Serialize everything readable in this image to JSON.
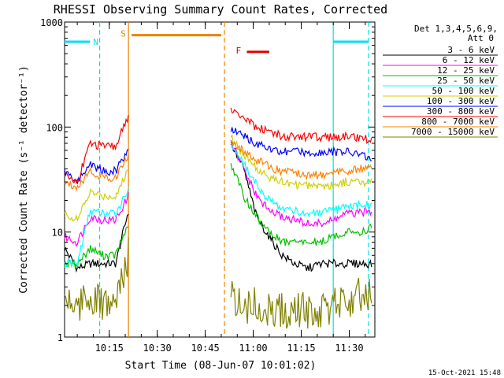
{
  "footer_timestamp": "15-Oct-2021 15:48",
  "chart_data": {
    "type": "line",
    "title": "RHESSI Observing Summary Count Rates, Corrected",
    "xlabel": "Start Time (08-Jun-07 10:01:02)",
    "ylabel": "Corrected Count Rate (s⁻¹ detector⁻¹)",
    "yscale": "log",
    "ylim": [
      1,
      1000
    ],
    "xlim": [
      "10:01:02",
      "11:38:00"
    ],
    "y_ticks": [
      "1",
      "10",
      "100",
      "1000"
    ],
    "x_ticks": [
      "10:15",
      "10:30",
      "10:45",
      "11:00",
      "11:15",
      "11:30"
    ],
    "legend_header": [
      "Det 1,3,4,5,6,9,",
      "Att 0"
    ],
    "legend_position": "right",
    "state_bars": [
      {
        "label": "N",
        "color": "#00e0f0",
        "segments": [
          [
            "10:01",
            "10:09"
          ],
          [
            "11:25",
            "11:36"
          ]
        ],
        "level": 650
      },
      {
        "label": "S",
        "color": "#f08000",
        "segments": [
          [
            "10:22",
            "10:50"
          ]
        ],
        "level": 750
      },
      {
        "label": "F",
        "color": "#e00000",
        "segments": [
          [
            "10:58",
            "11:05"
          ]
        ],
        "level": 520
      }
    ],
    "markers": [
      {
        "time": "10:12",
        "color": "#00e0f0",
        "style": "dashed"
      },
      {
        "time": "10:21",
        "color": "#f08000",
        "style": "solid"
      },
      {
        "time": "10:51",
        "color": "#f08000",
        "style": "dashed"
      },
      {
        "time": "11:25",
        "color": "#00e0f0",
        "style": "solid"
      },
      {
        "time": "11:36",
        "color": "#00e0f0",
        "style": "dashed"
      }
    ],
    "segments_time": [
      [
        "10:01",
        "10:21"
      ],
      [
        "10:53",
        "11:37"
      ]
    ],
    "series": [
      {
        "name": "3 - 6 keV",
        "color": "#000000",
        "values": [
          [
            7,
            4.5,
            5,
            5,
            5,
            16
          ],
          [
            70,
            40,
            14,
            9,
            6,
            5,
            4.5,
            5,
            5,
            5,
            5,
            5
          ]
        ]
      },
      {
        "name": "6 - 12 keV",
        "color": "#ff00ff",
        "values": [
          [
            9,
            8,
            14,
            13,
            13,
            22
          ],
          [
            70,
            40,
            22,
            16,
            14,
            13,
            12,
            12,
            13,
            15,
            15,
            16
          ]
        ]
      },
      {
        "name": "12 - 25 keV",
        "color": "#00c000",
        "values": [
          [
            5,
            5,
            7,
            6,
            6,
            12
          ],
          [
            45,
            22,
            14,
            10,
            8,
            8,
            8,
            8,
            9,
            10,
            10,
            11
          ]
        ]
      },
      {
        "name": "25 - 50 keV",
        "color": "#00ffff",
        "values": [
          [
            5,
            5,
            16,
            15,
            15,
            26
          ],
          [
            70,
            45,
            28,
            20,
            17,
            16,
            15,
            15,
            16,
            17,
            18,
            18
          ]
        ]
      },
      {
        "name": "50 - 100 keV",
        "color": "#d0d000",
        "values": [
          [
            15,
            13,
            24,
            22,
            22,
            40
          ],
          [
            80,
            55,
            40,
            33,
            30,
            28,
            28,
            28,
            28,
            30,
            30,
            30
          ]
        ]
      },
      {
        "name": "100 - 300 keV",
        "color": "#0000ff",
        "values": [
          [
            38,
            30,
            45,
            38,
            38,
            62
          ],
          [
            95,
            82,
            70,
            62,
            58,
            58,
            58,
            58,
            58,
            58,
            55,
            50
          ]
        ]
      },
      {
        "name": "300 - 800 keV",
        "color": "#ff0000",
        "values": [
          [
            35,
            30,
            70,
            65,
            65,
            130
          ],
          [
            150,
            120,
            100,
            90,
            82,
            80,
            80,
            80,
            80,
            82,
            80,
            75
          ]
        ]
      },
      {
        "name": "800 - 7000 keV",
        "color": "#ff8000",
        "values": [
          [
            30,
            27,
            38,
            33,
            33,
            55
          ],
          [
            75,
            60,
            48,
            42,
            38,
            36,
            35,
            35,
            36,
            38,
            40,
            40
          ]
        ]
      },
      {
        "name": "7000 - 15000 keV",
        "color": "#808000",
        "values": [
          [
            2.5,
            2,
            2.5,
            2,
            2,
            6
          ],
          [
            2.5,
            2,
            2,
            1.8,
            1.8,
            1.8,
            1.8,
            1.8,
            2,
            2,
            2.5,
            2.5
          ]
        ]
      }
    ]
  }
}
